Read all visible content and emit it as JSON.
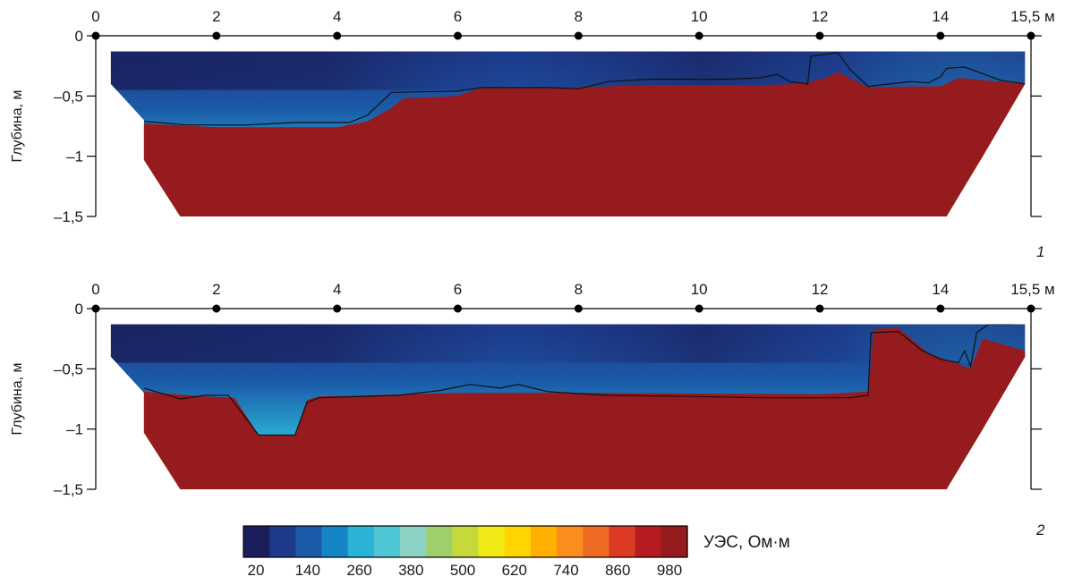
{
  "chart_data": [
    {
      "type": "heatmap",
      "panel_label": "1",
      "x_ticks": [
        "0",
        "2",
        "4",
        "6",
        "8",
        "10",
        "12",
        "14",
        "15,5 м"
      ],
      "x_values": [
        0,
        2,
        4,
        6,
        8,
        10,
        12,
        14,
        15.5
      ],
      "y_ticks": [
        "0",
        "–0,5",
        "–1",
        "–1,5"
      ],
      "y_values": [
        0,
        -0.5,
        -1,
        -1.5
      ],
      "ylabel": "Глубина, м",
      "xlim": [
        0,
        15.5
      ],
      "ylim": [
        -1.5,
        0
      ],
      "section_top": -0.13,
      "section_outline": [
        [
          0.25,
          -0.13
        ],
        [
          15.4,
          -0.13
        ],
        [
          15.4,
          -0.4
        ],
        [
          14.7,
          -1.0
        ],
        [
          14.7,
          -1.0
        ],
        [
          14.1,
          -1.5
        ],
        [
          1.4,
          -1.5
        ],
        [
          0.8,
          -1.03
        ],
        [
          0.8,
          -0.7
        ],
        [
          0.25,
          -0.4
        ]
      ],
      "boundary_line": [
        [
          0.8,
          -0.71
        ],
        [
          1.5,
          -0.74
        ],
        [
          2.5,
          -0.74
        ],
        [
          3.3,
          -0.72
        ],
        [
          4.2,
          -0.72
        ],
        [
          4.5,
          -0.66
        ],
        [
          4.9,
          -0.47
        ],
        [
          6.0,
          -0.46
        ],
        [
          6.4,
          -0.43
        ],
        [
          7.5,
          -0.43
        ],
        [
          8.0,
          -0.44
        ],
        [
          8.5,
          -0.38
        ],
        [
          9.2,
          -0.36
        ],
        [
          10.5,
          -0.36
        ],
        [
          11.0,
          -0.35
        ],
        [
          11.3,
          -0.32
        ],
        [
          11.5,
          -0.38
        ],
        [
          11.8,
          -0.4
        ],
        [
          11.85,
          -0.17
        ],
        [
          12.3,
          -0.14
        ],
        [
          12.5,
          -0.28
        ],
        [
          12.8,
          -0.42
        ],
        [
          13.5,
          -0.38
        ],
        [
          13.8,
          -0.39
        ],
        [
          14.0,
          -0.34
        ],
        [
          14.1,
          -0.27
        ],
        [
          14.4,
          -0.26
        ],
        [
          15.0,
          -0.37
        ],
        [
          15.4,
          -0.4
        ]
      ],
      "high_resistivity_top": [
        [
          0.8,
          -0.78
        ],
        [
          2.0,
          -0.81
        ],
        [
          4.0,
          -0.81
        ],
        [
          4.5,
          -0.76
        ],
        [
          4.9,
          -0.65
        ],
        [
          5.1,
          -0.57
        ],
        [
          6.0,
          -0.55
        ],
        [
          6.4,
          -0.48
        ],
        [
          8.0,
          -0.48
        ],
        [
          9.0,
          -0.46
        ],
        [
          11.0,
          -0.46
        ],
        [
          11.7,
          -0.45
        ],
        [
          12.1,
          -0.4
        ],
        [
          12.3,
          -0.35
        ],
        [
          12.8,
          -0.48
        ],
        [
          13.5,
          -0.47
        ],
        [
          14.0,
          -0.47
        ],
        [
          14.3,
          -0.4
        ],
        [
          15.4,
          -0.45
        ]
      ]
    },
    {
      "type": "heatmap",
      "panel_label": "2",
      "x_ticks": [
        "0",
        "2",
        "4",
        "6",
        "8",
        "10",
        "12",
        "14",
        "15,5 м"
      ],
      "x_values": [
        0,
        2,
        4,
        6,
        8,
        10,
        12,
        14,
        15.5
      ],
      "y_ticks": [
        "0",
        "–0,5",
        "–1",
        "–1,5"
      ],
      "y_values": [
        0,
        -0.5,
        -1,
        -1.5
      ],
      "ylabel": "Глубина, м",
      "xlim": [
        0,
        15.5
      ],
      "ylim": [
        -1.5,
        0
      ],
      "section_top": -0.13,
      "section_outline": [
        [
          0.25,
          -0.13
        ],
        [
          15.4,
          -0.13
        ],
        [
          15.4,
          -0.4
        ],
        [
          14.7,
          -1.0
        ],
        [
          14.7,
          -1.0
        ],
        [
          14.1,
          -1.5
        ],
        [
          1.4,
          -1.5
        ],
        [
          0.8,
          -1.03
        ],
        [
          0.8,
          -0.7
        ],
        [
          0.25,
          -0.4
        ]
      ],
      "boundary_line": [
        [
          0.8,
          -0.66
        ],
        [
          1.4,
          -0.75
        ],
        [
          1.8,
          -0.72
        ],
        [
          2.2,
          -0.72
        ],
        [
          2.7,
          -1.05
        ],
        [
          3.3,
          -1.05
        ],
        [
          3.5,
          -0.78
        ],
        [
          3.7,
          -0.74
        ],
        [
          5.0,
          -0.72
        ],
        [
          5.7,
          -0.68
        ],
        [
          6.2,
          -0.63
        ],
        [
          6.7,
          -0.66
        ],
        [
          7.0,
          -0.63
        ],
        [
          7.5,
          -0.69
        ],
        [
          8.5,
          -0.72
        ],
        [
          10.0,
          -0.73
        ],
        [
          11.0,
          -0.74
        ],
        [
          12.5,
          -0.74
        ],
        [
          12.8,
          -0.72
        ],
        [
          12.85,
          -0.2
        ],
        [
          13.3,
          -0.19
        ],
        [
          13.7,
          -0.35
        ],
        [
          14.0,
          -0.42
        ],
        [
          14.3,
          -0.45
        ],
        [
          14.4,
          -0.35
        ],
        [
          14.5,
          -0.48
        ],
        [
          14.6,
          -0.2
        ],
        [
          14.8,
          -0.13
        ],
        [
          15.2,
          -0.13
        ]
      ],
      "high_resistivity_top": [
        [
          0.8,
          -0.74
        ],
        [
          1.8,
          -0.78
        ],
        [
          2.3,
          -0.79
        ],
        [
          2.7,
          -1.1
        ],
        [
          3.3,
          -1.1
        ],
        [
          3.5,
          -0.81
        ],
        [
          3.7,
          -0.78
        ],
        [
          6.0,
          -0.75
        ],
        [
          8.0,
          -0.75
        ],
        [
          12.0,
          -0.76
        ],
        [
          12.8,
          -0.74
        ],
        [
          12.9,
          -0.22
        ],
        [
          13.3,
          -0.21
        ],
        [
          13.8,
          -0.42
        ],
        [
          14.5,
          -0.55
        ],
        [
          14.7,
          -0.3
        ],
        [
          15.4,
          -0.4
        ]
      ]
    }
  ],
  "colorbar": {
    "label": "УЭС, Ом·м",
    "tick_labels": [
      "20",
      "140",
      "260",
      "380",
      "500",
      "620",
      "740",
      "860",
      "980"
    ],
    "tick_values": [
      20,
      140,
      260,
      380,
      500,
      620,
      740,
      860,
      980
    ],
    "range": [
      0,
      1000
    ],
    "colors": [
      "#1a1f5c",
      "#1d3a8a",
      "#1b5aa8",
      "#1585c6",
      "#2ab3d6",
      "#4fc6d4",
      "#8cd3c6",
      "#9fcf6a",
      "#c5da3a",
      "#f1ea16",
      "#ffd400",
      "#ffb000",
      "#f98d1e",
      "#ef6a22",
      "#dc3a22",
      "#b51c1f",
      "#951b1e"
    ]
  },
  "colors": {
    "low": "#1b3078",
    "mid": "#2ab3d6",
    "high": "#951b1e",
    "boundary": "#111111"
  }
}
